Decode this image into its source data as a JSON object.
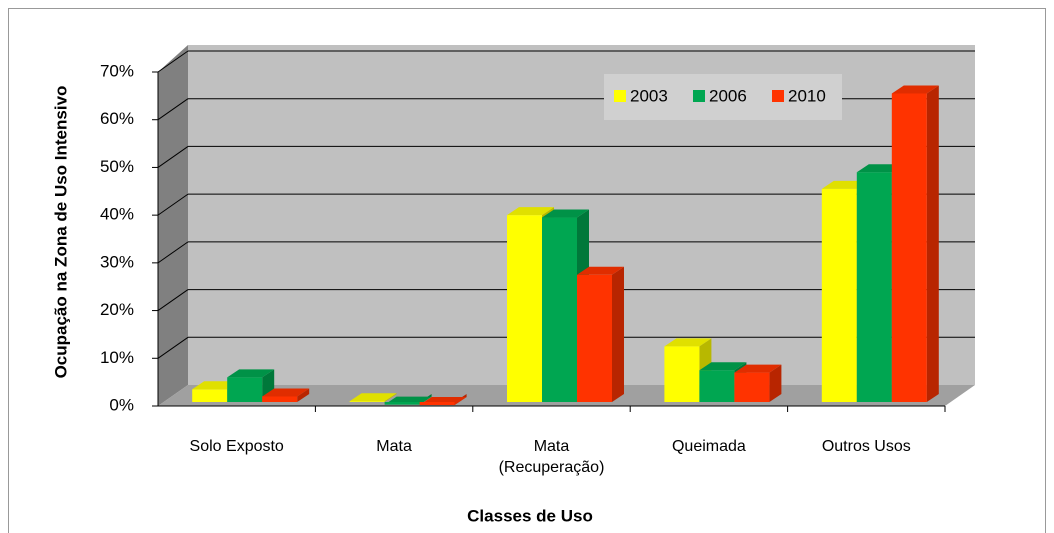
{
  "chart_data": {
    "type": "bar3d",
    "x_label": "Classes de Uso",
    "y_label": "Ocupação na Zona de Uso Intensivo",
    "categories": [
      "Solo Exposto",
      "Mata",
      "Mata (Recuperação)",
      "Queimada",
      "Outros Usos"
    ],
    "series": [
      {
        "name": "2003",
        "color": "#ffff00",
        "values": [
          3.5,
          1,
          40,
          12.5,
          45.5
        ]
      },
      {
        "name": "2006",
        "color": "#00a651",
        "values": [
          6,
          0.3,
          39.5,
          7.5,
          49
        ]
      },
      {
        "name": "2010",
        "color": "#ff3300",
        "values": [
          2,
          0.2,
          27.5,
          7,
          65.5
        ]
      }
    ],
    "ylim": [
      0,
      70
    ],
    "yticks": [
      {
        "value": 0,
        "label": "0%"
      },
      {
        "value": 10,
        "label": "10%"
      },
      {
        "value": 20,
        "label": "20%"
      },
      {
        "value": 30,
        "label": "30%"
      },
      {
        "value": 40,
        "label": "40%"
      },
      {
        "value": 50,
        "label": "50%"
      },
      {
        "value": 60,
        "label": "60%"
      },
      {
        "value": 70,
        "label": "70%"
      }
    ],
    "grid": true,
    "legend": "top-right"
  }
}
